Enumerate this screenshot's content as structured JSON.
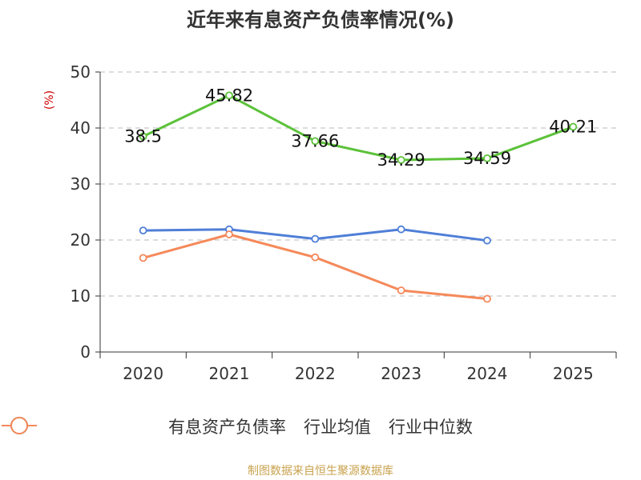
{
  "title": "近年来有息资产负债率情况(%)",
  "source": "制图数据来自恒生聚源数据库",
  "colors": {
    "debt": "#5cc23a",
    "avg": "#4f7fd7",
    "median": "#f5895a",
    "axis": "#333333",
    "grid": "#bbbbbb",
    "unit": "#cc0000"
  },
  "chart_data": {
    "type": "line",
    "title": "近年来有息资产负债率情况(%)",
    "ylabel": "(%)",
    "xlabel": "",
    "ylim": [
      0,
      50
    ],
    "yticks": [
      0,
      10,
      20,
      30,
      40,
      50
    ],
    "categories": [
      "2020",
      "2021",
      "2022",
      "2023",
      "2024",
      "2025"
    ],
    "series": [
      {
        "name": "有息资产负债率",
        "color": "#5cc23a",
        "values": [
          38.5,
          45.82,
          37.66,
          34.29,
          34.59,
          40.21
        ],
        "labels": [
          "38.5",
          "45.82",
          "37.66",
          "34.29",
          "34.59",
          "40.21"
        ]
      },
      {
        "name": "行业均值",
        "color": "#4f7fd7",
        "values": [
          21.7,
          21.9,
          20.2,
          21.9,
          19.9,
          null
        ]
      },
      {
        "name": "行业中位数",
        "color": "#f5895a",
        "values": [
          16.8,
          21.0,
          16.9,
          11.0,
          9.5,
          null
        ]
      }
    ]
  }
}
